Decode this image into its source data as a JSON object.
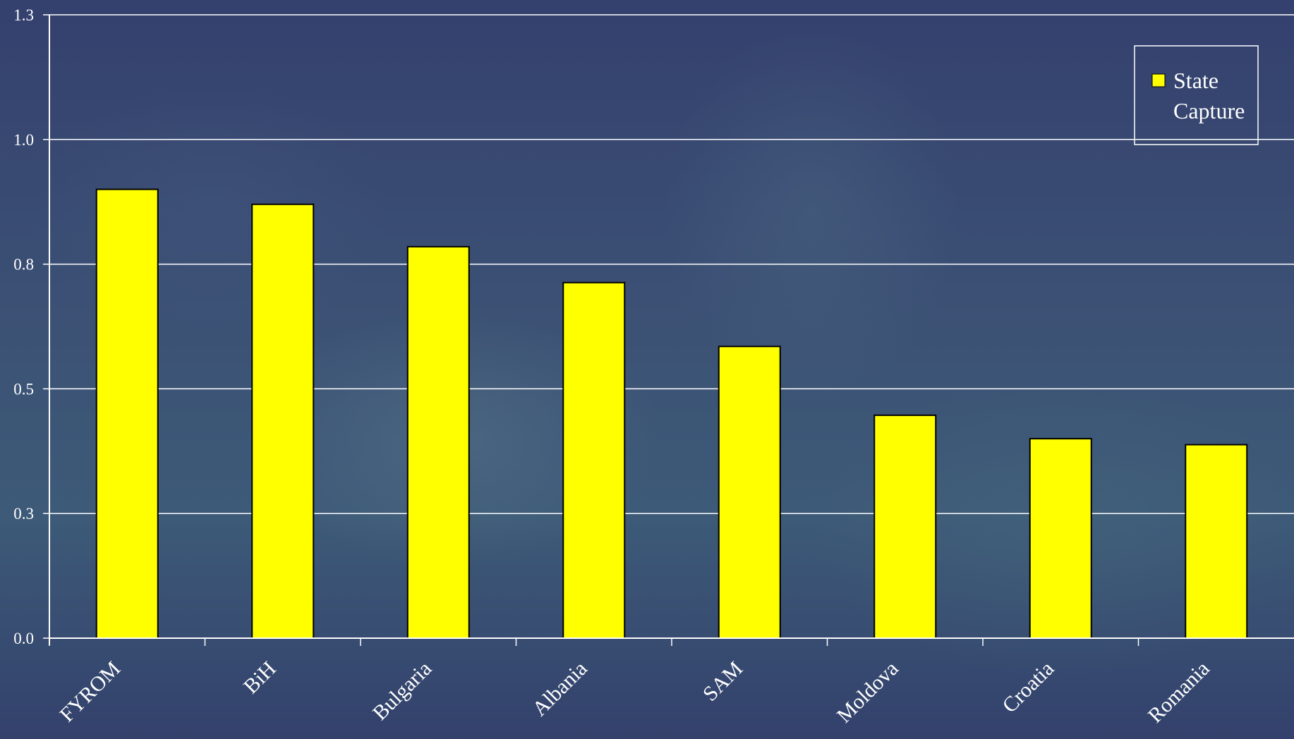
{
  "chart_data": {
    "type": "bar",
    "title": "",
    "xlabel": "",
    "ylabel": "",
    "categories": [
      "FYROM",
      "BiH",
      "Bulgaria",
      "Albania",
      "SAM",
      "Moldova",
      "Croatia",
      "Romania"
    ],
    "series": [
      {
        "name": "State Capture",
        "values": [
          0.9,
          0.87,
          0.785,
          0.713,
          0.585,
          0.447,
          0.4,
          0.388
        ],
        "color": "#ffff00"
      }
    ],
    "y_ticks": [
      "0.0",
      "0.3",
      "0.5",
      "0.8",
      "1.0",
      "1.3"
    ],
    "ylim": [
      0,
      1.25
    ],
    "grid": true,
    "legend": {
      "position": "top-right",
      "entries": [
        "State",
        "Capture"
      ]
    },
    "colors": {
      "gridline": "#ffffff",
      "bar_outline": "#000000",
      "text": "#ffffff"
    }
  }
}
